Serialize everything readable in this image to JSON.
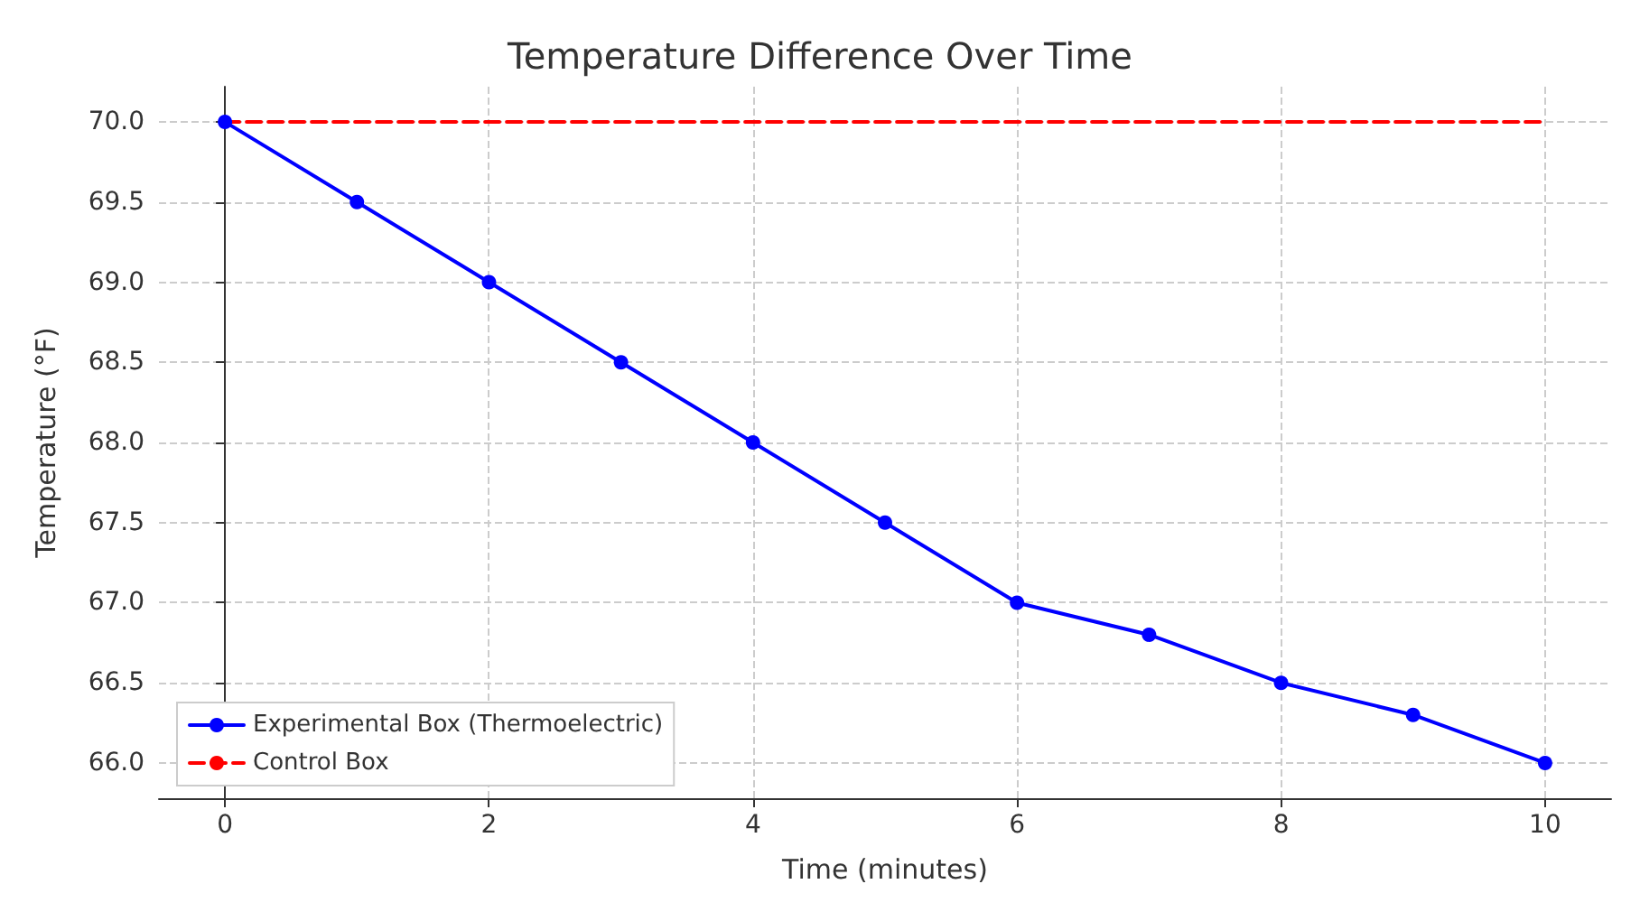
{
  "chart_data": {
    "type": "line",
    "title": "Temperature Difference Over Time",
    "xlabel": "Time (minutes)",
    "ylabel": "Temperature (°F)",
    "x": [
      0,
      1,
      2,
      3,
      4,
      5,
      6,
      7,
      8,
      9,
      10
    ],
    "series": [
      {
        "name": "Experimental Box (Thermoelectric)",
        "color": "#0000ff",
        "values": [
          70,
          69.5,
          69,
          68.5,
          68,
          67.5,
          67,
          66.8,
          66.5,
          66.3,
          66
        ],
        "marker": "circle",
        "line_style": "solid"
      },
      {
        "name": "Control Box",
        "color": "#ff0000",
        "values": [
          70,
          70,
          70,
          70,
          70,
          70,
          70,
          70,
          70,
          70,
          70
        ],
        "marker": "none",
        "line_style": "dashed"
      }
    ],
    "xlim": [
      -0.5,
      10.5
    ],
    "xticks": [
      0,
      2,
      4,
      6,
      8,
      10
    ],
    "ylim": [
      65.78,
      70.22
    ],
    "yticks": [
      {
        "value": 66,
        "label": "66.0"
      },
      {
        "value": 66.5,
        "label": "66.5"
      },
      {
        "value": 67,
        "label": "67.0"
      },
      {
        "value": 67.5,
        "label": "67.5"
      },
      {
        "value": 68,
        "label": "68.0"
      },
      {
        "value": 68.5,
        "label": "68.5"
      },
      {
        "value": 69,
        "label": "69.0"
      },
      {
        "value": 69.5,
        "label": "69.5"
      },
      {
        "value": 70,
        "label": "70.0"
      }
    ],
    "grid": true,
    "legend": "bottom left"
  }
}
